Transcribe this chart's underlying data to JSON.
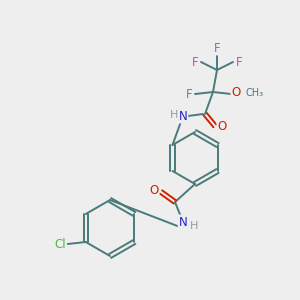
{
  "bg_color": "#eeeeee",
  "bond_color": "#4a7a7a",
  "atom_colors": {
    "F": "#cc44cc",
    "O": "#cc2200",
    "N": "#2222cc",
    "Cl": "#44bb44",
    "H": "#999999",
    "C": "#4a7a7a"
  }
}
